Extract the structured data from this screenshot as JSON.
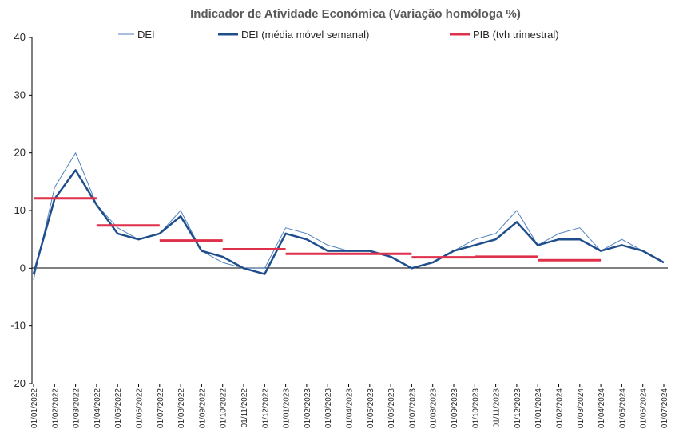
{
  "chart_data": {
    "type": "line",
    "title": "Indicador de Atividade Económica (Variação homóloga %)",
    "xlabel": "",
    "ylabel": "",
    "ylim": [
      -20,
      40
    ],
    "yticks": [
      -20,
      -10,
      0,
      10,
      20,
      30,
      40
    ],
    "grid": false,
    "legend_position": "top",
    "x_tick_labels": [
      "01/01/2022",
      "01/02/2022",
      "01/03/2022",
      "01/04/2022",
      "01/05/2022",
      "01/06/2022",
      "01/07/2022",
      "01/08/2022",
      "01/09/2022",
      "01/10/2022",
      "01/11/2022",
      "01/12/2022",
      "01/01/2023",
      "01/02/2023",
      "01/03/2023",
      "01/04/2023",
      "01/05/2023",
      "01/06/2023",
      "01/07/2023",
      "01/08/2023",
      "01/09/2023",
      "01/10/2023",
      "01/11/2023",
      "01/12/2023",
      "01/01/2024",
      "01/02/2024",
      "01/03/2024",
      "01/04/2024",
      "01/05/2024",
      "01/06/2024",
      "01/07/2024"
    ],
    "series": [
      {
        "name": "DEI",
        "color": "#4f81bd",
        "style": "thin",
        "x": [
          "01/01/2022",
          "01/02/2022",
          "01/03/2022",
          "01/04/2022",
          "01/05/2022",
          "01/06/2022",
          "01/07/2022",
          "01/08/2022",
          "01/09/2022",
          "01/10/2022",
          "01/11/2022",
          "01/12/2022",
          "01/01/2023",
          "01/02/2023",
          "01/03/2023",
          "01/04/2023",
          "01/05/2023",
          "01/06/2023",
          "01/07/2023",
          "01/08/2023",
          "01/09/2023",
          "01/10/2023",
          "01/11/2023",
          "01/12/2023",
          "01/01/2024",
          "01/02/2024",
          "01/03/2024",
          "01/04/2024",
          "01/05/2024",
          "01/06/2024",
          "01/07/2024"
        ],
        "values": [
          -2,
          14,
          20,
          11,
          7,
          5,
          6,
          10,
          3,
          1,
          0,
          0,
          7,
          6,
          4,
          3,
          3,
          2,
          0,
          1,
          3,
          5,
          6,
          10,
          4,
          6,
          7,
          3,
          5,
          3,
          1
        ]
      },
      {
        "name": "DEI (média móvel semanal)",
        "color": "#1f4e8c",
        "style": "thick",
        "x": [
          "01/01/2022",
          "01/02/2022",
          "01/03/2022",
          "01/04/2022",
          "01/05/2022",
          "01/06/2022",
          "01/07/2022",
          "01/08/2022",
          "01/09/2022",
          "01/10/2022",
          "01/11/2022",
          "01/12/2022",
          "01/01/2023",
          "01/02/2023",
          "01/03/2023",
          "01/04/2023",
          "01/05/2023",
          "01/06/2023",
          "01/07/2023",
          "01/08/2023",
          "01/09/2023",
          "01/10/2023",
          "01/11/2023",
          "01/12/2023",
          "01/01/2024",
          "01/02/2024",
          "01/03/2024",
          "01/04/2024",
          "01/05/2024",
          "01/06/2024",
          "01/07/2024"
        ],
        "values": [
          -1,
          12,
          17,
          11,
          6,
          5,
          6,
          9,
          3,
          2,
          0,
          -1,
          6,
          5,
          3,
          3,
          3,
          2,
          0,
          1,
          3,
          4,
          5,
          8,
          4,
          5,
          5,
          3,
          4,
          3,
          1
        ]
      },
      {
        "name": "PIB (tvh trimestral)",
        "color": "#e0314c",
        "style": "step",
        "segments": [
          {
            "x_start": "01/01/2022",
            "x_end": "01/04/2022",
            "value": 12.1
          },
          {
            "x_start": "01/04/2022",
            "x_end": "01/07/2022",
            "value": 7.4
          },
          {
            "x_start": "01/07/2022",
            "x_end": "01/10/2022",
            "value": 4.8
          },
          {
            "x_start": "01/10/2022",
            "x_end": "01/01/2023",
            "value": 3.3
          },
          {
            "x_start": "01/01/2023",
            "x_end": "01/04/2023",
            "value": 2.5
          },
          {
            "x_start": "01/04/2023",
            "x_end": "01/07/2023",
            "value": 2.5
          },
          {
            "x_start": "01/07/2023",
            "x_end": "01/10/2023",
            "value": 1.9
          },
          {
            "x_start": "01/10/2023",
            "x_end": "01/01/2024",
            "value": 2.0
          },
          {
            "x_start": "01/01/2024",
            "x_end": "01/04/2024",
            "value": 1.4
          }
        ]
      }
    ]
  }
}
